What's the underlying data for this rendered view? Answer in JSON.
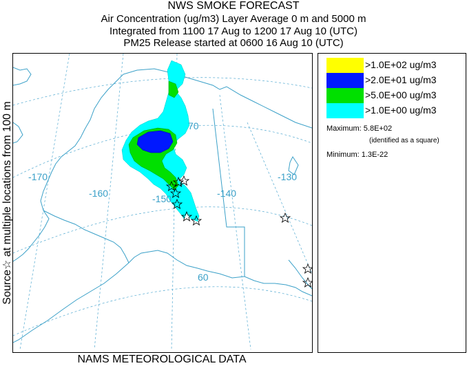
{
  "header": {
    "title": "NWS SMOKE FORECAST",
    "line2": "Air Concentration (ug/m3) Layer Average    0 m and  5000 m",
    "line3": "Integrated from 1100 17 Aug to 1200 17 Aug 10 (UTC)",
    "line4": "PM25 Release started at 0600 16 Aug 10 (UTC)"
  },
  "side_label": "Source☆ at multiple locations from  100 m",
  "footer": "NAMS METEOROLOGICAL DATA",
  "map": {
    "longitude_labels": [
      "-170",
      "-160",
      "-150",
      "-140",
      "-130"
    ],
    "latitude_labels": [
      "70",
      "60"
    ],
    "colors": {
      "grid": "#4fa8d0",
      "coast": "#3aa0c8"
    }
  },
  "legend": {
    "items": [
      {
        "label": ">1.0E+02 ug/m3",
        "color": "#ffff00"
      },
      {
        "label": ">2.0E+01 ug/m3",
        "color": "#0018ff"
      },
      {
        "label": ">5.0E+00 ug/m3",
        "color": "#00e000"
      },
      {
        "label": ">1.0E+00 ug/m3",
        "color": "#00ffff"
      }
    ],
    "maximum_label": "Maximum:",
    "maximum_value": "5.8E+02",
    "maximum_note": "(identified as a square)",
    "minimum_label": "Minimum:",
    "minimum_value": "1.3E-22"
  }
}
